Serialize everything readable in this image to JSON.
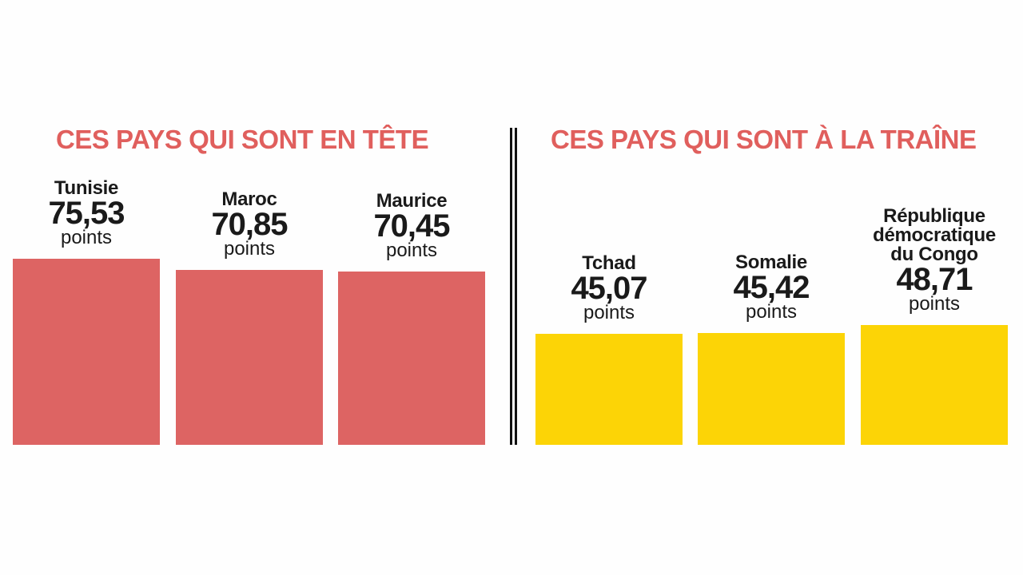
{
  "chart_data": [
    {
      "type": "bar",
      "title": "CES PAYS QUI SONT EN TÊTE",
      "color": "#dd6463",
      "unit": "points",
      "categories": [
        "Tunisie",
        "Maroc",
        "Maurice"
      ],
      "values": [
        75.53,
        70.85,
        70.45
      ],
      "value_labels": [
        "75,53",
        "70,85",
        "70,45"
      ]
    },
    {
      "type": "bar",
      "title": "CES PAYS QUI SONT À LA TRAÎNE",
      "color": "#fcd406",
      "unit": "points",
      "categories": [
        "Tchad",
        "Somalie",
        "République démocratique du Congo"
      ],
      "category_lines": [
        [
          "Tchad"
        ],
        [
          "Somalie"
        ],
        [
          "République",
          "démocratique",
          "du Congo"
        ]
      ],
      "values": [
        45.07,
        45.42,
        48.71
      ],
      "value_labels": [
        "45,07",
        "45,42",
        "48,71"
      ]
    }
  ]
}
